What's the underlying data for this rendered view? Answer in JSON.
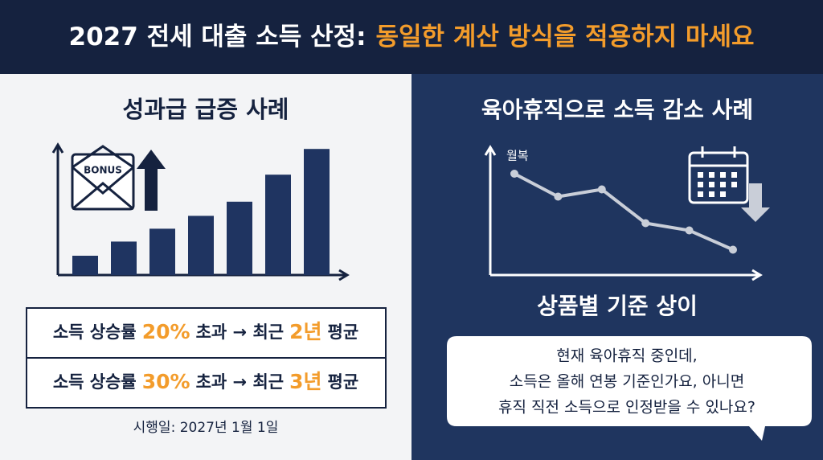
{
  "header": {
    "title_main": "2027 전세 대출 소득 산정:",
    "title_accent": "동일한 계산 방식을 적용하지 마세요"
  },
  "left": {
    "title": "성과급 급증 사례",
    "icon_label": "BONUS",
    "bars": [
      15,
      26,
      36,
      46,
      57,
      78,
      98
    ],
    "rules": [
      [
        "소득 상승률",
        "20%",
        "초과 → 최근",
        "2년",
        "평균"
      ],
      [
        "소득 상승률",
        "30%",
        "초과 → 최근",
        "3년",
        "평균"
      ]
    ],
    "effective_date": "시행일: 2027년 1월 1일"
  },
  "right": {
    "title": "육아휴직으로 소득 감소 사례",
    "line_label": "월복",
    "line": [
      84,
      65,
      71,
      43,
      37,
      21
    ],
    "subtitle": "상품별 기준 상이",
    "bubble": [
      "현재 육아휴직 중인데,",
      "소득은 올해 연봉 기준인가요, 아니면",
      "휴직 직전 소득으로 인정받을 수 있나요?"
    ]
  }
}
